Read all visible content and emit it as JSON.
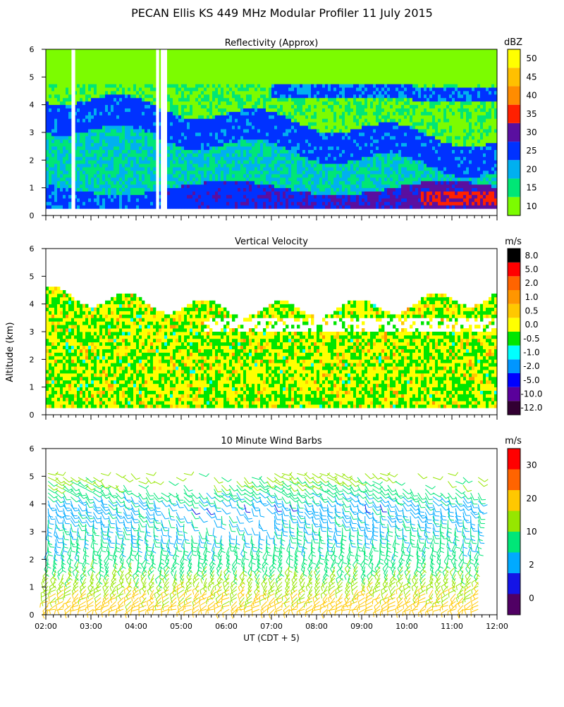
{
  "title": "PECAN Ellis KS 449 MHz Modular Profiler 11 July 2015",
  "shared_ylabel": "Altitude (km)",
  "x_axis_label": "UT  (CDT + 5)",
  "x_ticks": [
    "02:00",
    "03:00",
    "04:00",
    "05:00",
    "06:00",
    "07:00",
    "08:00",
    "09:00",
    "10:00",
    "11:00",
    "12:00"
  ],
  "chart_data": [
    {
      "id": "reflectivity",
      "type": "heatmap",
      "title": "Reflectivity (Approx)",
      "xlabel": "UT  (CDT + 5)",
      "ylabel": "Altitude (km)",
      "xlim_hours": [
        2,
        12
      ],
      "ylim_km": [
        0,
        6
      ],
      "y_ticks": [
        "0",
        "1",
        "2",
        "3",
        "4",
        "5",
        "6"
      ],
      "colorbar": {
        "unit": "dBZ",
        "labels": [
          "10",
          "15",
          "20",
          "25",
          "30",
          "35",
          "40",
          "45",
          "50"
        ],
        "colors": [
          "#7CFC00",
          "#00E676",
          "#00B0F0",
          "#0032FF",
          "#5A0FA0",
          "#FF2000",
          "#FF8C00",
          "#FFC000",
          "#FFFF00"
        ]
      },
      "features": [
        {
          "layer": "boundary layer",
          "altitude_km": [
            0.3,
            1.0
          ],
          "approx_dBZ": 25
        },
        {
          "layer": "upper clear-air layer",
          "altitude_km": [
            2.0,
            4.2
          ],
          "approx_dBZ": 25
        },
        {
          "layer": "late-period enhancement near 11:00",
          "altitude_km": [
            0.4,
            0.9
          ],
          "approx_dBZ": 35
        }
      ],
      "gaps_hours": [
        2.62,
        4.48,
        4.58,
        4.65
      ]
    },
    {
      "id": "vertical-velocity",
      "type": "heatmap",
      "title": "Vertical Velocity",
      "xlabel": "UT  (CDT + 5)",
      "ylabel": "Altitude (km)",
      "xlim_hours": [
        2,
        12
      ],
      "ylim_km": [
        0,
        6
      ],
      "y_ticks": [
        "0",
        "1",
        "2",
        "3",
        "4",
        "5",
        "6"
      ],
      "colorbar": {
        "unit": "m/s",
        "labels": [
          "8.0",
          "5.0",
          "2.0",
          "1.0",
          "0.5",
          "0.0",
          "-0.5",
          "-1.0",
          "-2.0",
          "-5.0",
          "-10.0",
          "-12.0"
        ],
        "colors": [
          "#000000",
          "#FF0000",
          "#FF6400",
          "#FF9600",
          "#FFC800",
          "#FFFF00",
          "#00E600",
          "#00FFFF",
          "#0096FF",
          "#0000FF",
          "#5A009B",
          "#320032"
        ]
      },
      "features": [
        {
          "layer": "mostly weak updraft / downdraft",
          "altitude_km": [
            0.3,
            4.5
          ],
          "range_mps": [
            -0.5,
            0.5
          ]
        }
      ]
    },
    {
      "id": "wind-barbs",
      "type": "scatter",
      "title": "10 Minute Wind Barbs",
      "xlabel": "UT  (CDT + 5)",
      "ylabel": "Altitude (km)",
      "xlim_hours": [
        2,
        12
      ],
      "ylim_km": [
        0,
        6
      ],
      "y_ticks": [
        "0",
        "1",
        "2",
        "3",
        "4",
        "5",
        "6"
      ],
      "colorbar": {
        "unit": "m/s",
        "labels": [
          "0",
          "2",
          "10",
          "20",
          "30"
        ],
        "colors": [
          "#500064",
          "#1414E6",
          "#00AAFF",
          "#00E678",
          "#96E600",
          "#FFC800",
          "#FF6400",
          "#FF0000"
        ]
      },
      "profile": [
        {
          "altitude_km": 0.3,
          "speed_mps": 20
        },
        {
          "altitude_km": 1.0,
          "speed_mps": 16
        },
        {
          "altitude_km": 2.0,
          "speed_mps": 10
        },
        {
          "altitude_km": 3.0,
          "speed_mps": 7
        },
        {
          "altitude_km": 4.0,
          "speed_mps": 5
        },
        {
          "altitude_km": 5.0,
          "speed_mps": 14
        }
      ]
    }
  ]
}
